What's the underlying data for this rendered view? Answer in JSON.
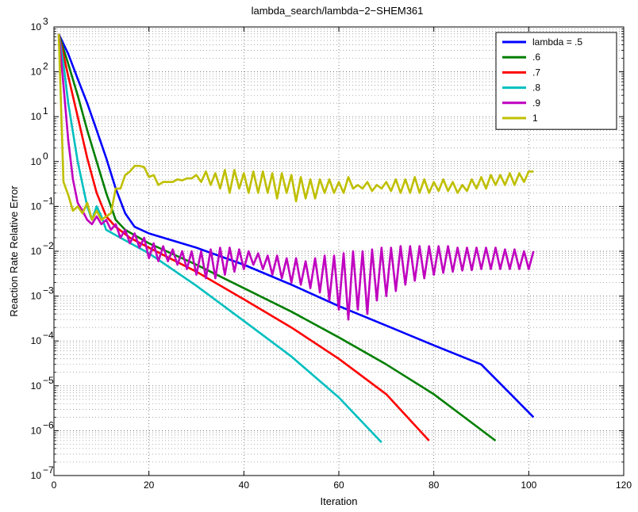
{
  "chart_data": {
    "type": "line",
    "title": "lambda_search/lambda−2−SHEM361",
    "xlabel": "Iteration",
    "ylabel": "Reaction Rate Relative Error",
    "xlim": [
      0,
      120
    ],
    "ylim": [
      1e-07,
      1000
    ],
    "yscale": "log",
    "xticks": [
      "0",
      "20",
      "40",
      "60",
      "80",
      "100",
      "120"
    ],
    "yticks": [
      {
        "base": "10",
        "exp": "3"
      },
      {
        "base": "10",
        "exp": "2"
      },
      {
        "base": "10",
        "exp": "1"
      },
      {
        "base": "10",
        "exp": "0"
      },
      {
        "base": "10",
        "exp": "−1"
      },
      {
        "base": "10",
        "exp": "−2"
      },
      {
        "base": "10",
        "exp": "−3"
      },
      {
        "base": "10",
        "exp": "−4"
      },
      {
        "base": "10",
        "exp": "−5"
      },
      {
        "base": "10",
        "exp": "−6"
      },
      {
        "base": "10",
        "exp": "−7"
      }
    ],
    "grid": true,
    "legend_position": "top-right",
    "series": [
      {
        "name": "lambda = .5",
        "color": "#0000ff",
        "points": [
          [
            1,
            700
          ],
          [
            3,
            250
          ],
          [
            5,
            70
          ],
          [
            7,
            20
          ],
          [
            9,
            5
          ],
          [
            11,
            1.2
          ],
          [
            13,
            0.25
          ],
          [
            15,
            0.07
          ],
          [
            17,
            0.035
          ],
          [
            20,
            0.025
          ],
          [
            30,
            0.012
          ],
          [
            40,
            0.005
          ],
          [
            50,
            0.0018
          ],
          [
            60,
            0.0006
          ],
          [
            70,
            0.00022
          ],
          [
            80,
            8e-05
          ],
          [
            90,
            3e-05
          ],
          [
            101,
            2e-06
          ]
        ]
      },
      {
        "name": ".6",
        "color": "#007f00",
        "points": [
          [
            1,
            700
          ],
          [
            3,
            150
          ],
          [
            5,
            30
          ],
          [
            7,
            5
          ],
          [
            9,
            1
          ],
          [
            11,
            0.2
          ],
          [
            13,
            0.05
          ],
          [
            15,
            0.03
          ],
          [
            20,
            0.015
          ],
          [
            30,
            0.005
          ],
          [
            40,
            0.0015
          ],
          [
            50,
            0.00045
          ],
          [
            60,
            0.00012
          ],
          [
            70,
            3e-05
          ],
          [
            80,
            6.5e-06
          ],
          [
            93,
            6e-07
          ]
        ]
      },
      {
        "name": ".7",
        "color": "#ff0000",
        "points": [
          [
            1,
            700
          ],
          [
            3,
            80
          ],
          [
            5,
            10
          ],
          [
            7,
            1.2
          ],
          [
            9,
            0.2
          ],
          [
            11,
            0.06
          ],
          [
            13,
            0.035
          ],
          [
            16,
            0.02
          ],
          [
            20,
            0.012
          ],
          [
            30,
            0.0035
          ],
          [
            40,
            0.00085
          ],
          [
            50,
            0.0002
          ],
          [
            60,
            4e-05
          ],
          [
            70,
            6.5e-06
          ],
          [
            79,
            6e-07
          ]
        ]
      },
      {
        "name": ".8",
        "color": "#00bfbf",
        "points": [
          [
            1,
            700
          ],
          [
            2,
            150
          ],
          [
            3,
            20
          ],
          [
            5,
            1
          ],
          [
            7,
            0.1
          ],
          [
            8,
            0.05
          ],
          [
            9,
            0.1
          ],
          [
            10,
            0.06
          ],
          [
            11,
            0.03
          ],
          [
            14,
            0.02
          ],
          [
            20,
            0.009
          ],
          [
            30,
            0.0017
          ],
          [
            40,
            0.00028
          ],
          [
            50,
            4.5e-05
          ],
          [
            60,
            5.5e-06
          ],
          [
            69,
            5.5e-07
          ]
        ]
      },
      {
        "name": ".9",
        "color": "#bf00bf",
        "points": [
          [
            1,
            700
          ],
          [
            2,
            50
          ],
          [
            3,
            3
          ],
          [
            4,
            0.4
          ],
          [
            5,
            0.12
          ],
          [
            6,
            0.08
          ],
          [
            7,
            0.05
          ],
          [
            8,
            0.04
          ],
          [
            9,
            0.06
          ],
          [
            10,
            0.04
          ],
          [
            11,
            0.05
          ],
          [
            12,
            0.03
          ],
          [
            13,
            0.04
          ],
          [
            14,
            0.02
          ],
          [
            15,
            0.03
          ],
          [
            16,
            0.015
          ],
          [
            17,
            0.025
          ],
          [
            18,
            0.012
          ],
          [
            19,
            0.02
          ],
          [
            20,
            0.007
          ],
          [
            21,
            0.015
          ],
          [
            22,
            0.006
          ],
          [
            23,
            0.013
          ],
          [
            24,
            0.006
          ],
          [
            25,
            0.011
          ],
          [
            26,
            0.005
          ],
          [
            27,
            0.01
          ],
          [
            28,
            0.004
          ],
          [
            29,
            0.01
          ],
          [
            30,
            0.003
          ],
          [
            31,
            0.01
          ],
          [
            32,
            0.0025
          ],
          [
            33,
            0.011
          ],
          [
            34,
            0.0025
          ],
          [
            35,
            0.012
          ],
          [
            36,
            0.003
          ],
          [
            37,
            0.012
          ],
          [
            38,
            0.0035
          ],
          [
            39,
            0.011
          ],
          [
            40,
            0.004
          ],
          [
            41,
            0.01
          ],
          [
            42,
            0.005
          ],
          [
            43,
            0.009
          ],
          [
            44,
            0.004
          ],
          [
            45,
            0.008
          ],
          [
            46,
            0.003
          ],
          [
            47,
            0.008
          ],
          [
            48,
            0.0025
          ],
          [
            49,
            0.007
          ],
          [
            50,
            0.002
          ],
          [
            51,
            0.007
          ],
          [
            52,
            0.0018
          ],
          [
            53,
            0.006
          ],
          [
            54,
            0.0015
          ],
          [
            55,
            0.007
          ],
          [
            56,
            0.0012
          ],
          [
            57,
            0.008
          ],
          [
            58,
            0.0008
          ],
          [
            59,
            0.008
          ],
          [
            60,
            0.0005
          ],
          [
            61,
            0.009
          ],
          [
            62,
            0.0003
          ],
          [
            63,
            0.01
          ],
          [
            64,
            0.0005
          ],
          [
            65,
            0.01
          ],
          [
            66,
            0.0004
          ],
          [
            67,
            0.011
          ],
          [
            68,
            0.0008
          ],
          [
            69,
            0.012
          ],
          [
            70,
            0.001
          ],
          [
            71,
            0.012
          ],
          [
            72,
            0.0013
          ],
          [
            73,
            0.013
          ],
          [
            74,
            0.0018
          ],
          [
            75,
            0.013
          ],
          [
            76,
            0.0022
          ],
          [
            77,
            0.013
          ],
          [
            78,
            0.0025
          ],
          [
            79,
            0.013
          ],
          [
            80,
            0.003
          ],
          [
            81,
            0.013
          ],
          [
            82,
            0.0033
          ],
          [
            83,
            0.013
          ],
          [
            84,
            0.0035
          ],
          [
            85,
            0.012
          ],
          [
            86,
            0.0037
          ],
          [
            87,
            0.012
          ],
          [
            88,
            0.0038
          ],
          [
            89,
            0.012
          ],
          [
            90,
            0.004
          ],
          [
            91,
            0.012
          ],
          [
            92,
            0.004
          ],
          [
            93,
            0.012
          ],
          [
            94,
            0.004
          ],
          [
            95,
            0.011
          ],
          [
            96,
            0.004
          ],
          [
            97,
            0.011
          ],
          [
            98,
            0.004
          ],
          [
            99,
            0.01
          ],
          [
            100,
            0.004
          ],
          [
            101,
            0.01
          ]
        ]
      },
      {
        "name": "1",
        "color": "#bfbf00",
        "points": [
          [
            1,
            700
          ],
          [
            2,
            0.35
          ],
          [
            3,
            0.18
          ],
          [
            4,
            0.08
          ],
          [
            5,
            0.1
          ],
          [
            6,
            0.07
          ],
          [
            7,
            0.12
          ],
          [
            8,
            0.05
          ],
          [
            9,
            0.08
          ],
          [
            10,
            0.05
          ],
          [
            11,
            0.06
          ],
          [
            12,
            0.07
          ],
          [
            13,
            0.25
          ],
          [
            14,
            0.25
          ],
          [
            15,
            0.5
          ],
          [
            16,
            0.6
          ],
          [
            17,
            0.8
          ],
          [
            18,
            0.8
          ],
          [
            19,
            0.75
          ],
          [
            20,
            0.45
          ],
          [
            21,
            0.5
          ],
          [
            22,
            0.3
          ],
          [
            23,
            0.35
          ],
          [
            24,
            0.35
          ],
          [
            25,
            0.35
          ],
          [
            26,
            0.4
          ],
          [
            27,
            0.38
          ],
          [
            28,
            0.42
          ],
          [
            29,
            0.42
          ],
          [
            30,
            0.5
          ],
          [
            31,
            0.35
          ],
          [
            32,
            0.6
          ],
          [
            33,
            0.3
          ],
          [
            34,
            0.55
          ],
          [
            35,
            0.25
          ],
          [
            36,
            0.65
          ],
          [
            37,
            0.2
          ],
          [
            38,
            0.65
          ],
          [
            39,
            0.25
          ],
          [
            40,
            0.55
          ],
          [
            41,
            0.2
          ],
          [
            42,
            0.6
          ],
          [
            43,
            0.2
          ],
          [
            44,
            0.6
          ],
          [
            45,
            0.2
          ],
          [
            46,
            0.55
          ],
          [
            47,
            0.15
          ],
          [
            48,
            0.55
          ],
          [
            49,
            0.2
          ],
          [
            50,
            0.5
          ],
          [
            51,
            0.13
          ],
          [
            52,
            0.45
          ],
          [
            53,
            0.15
          ],
          [
            54,
            0.4
          ],
          [
            55,
            0.15
          ],
          [
            56,
            0.4
          ],
          [
            57,
            0.2
          ],
          [
            58,
            0.4
          ],
          [
            59,
            0.2
          ],
          [
            60,
            0.35
          ],
          [
            61,
            0.2
          ],
          [
            62,
            0.45
          ],
          [
            63,
            0.25
          ],
          [
            64,
            0.3
          ],
          [
            65,
            0.25
          ],
          [
            66,
            0.35
          ],
          [
            67,
            0.22
          ],
          [
            68,
            0.3
          ],
          [
            69,
            0.25
          ],
          [
            70,
            0.35
          ],
          [
            71,
            0.22
          ],
          [
            72,
            0.4
          ],
          [
            73,
            0.2
          ],
          [
            74,
            0.4
          ],
          [
            75,
            0.2
          ],
          [
            76,
            0.45
          ],
          [
            77,
            0.2
          ],
          [
            78,
            0.4
          ],
          [
            79,
            0.2
          ],
          [
            80,
            0.35
          ],
          [
            81,
            0.22
          ],
          [
            82,
            0.4
          ],
          [
            83,
            0.22
          ],
          [
            84,
            0.35
          ],
          [
            85,
            0.2
          ],
          [
            86,
            0.3
          ],
          [
            87,
            0.22
          ],
          [
            88,
            0.4
          ],
          [
            89,
            0.25
          ],
          [
            90,
            0.45
          ],
          [
            91,
            0.25
          ],
          [
            92,
            0.5
          ],
          [
            93,
            0.3
          ],
          [
            94,
            0.5
          ],
          [
            95,
            0.3
          ],
          [
            96,
            0.55
          ],
          [
            97,
            0.3
          ],
          [
            98,
            0.55
          ],
          [
            99,
            0.35
          ],
          [
            100,
            0.6
          ],
          [
            101,
            0.6
          ]
        ]
      }
    ]
  }
}
